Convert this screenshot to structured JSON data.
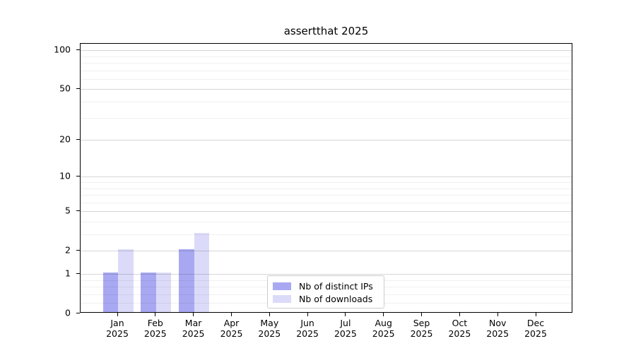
{
  "page": {
    "background": "#ffffff"
  },
  "chart_data": {
    "type": "bar",
    "title": "assertthat 2025",
    "categories": [
      "Jan",
      "Feb",
      "Mar",
      "Apr",
      "May",
      "Jun",
      "Jul",
      "Aug",
      "Sep",
      "Oct",
      "Nov",
      "Dec"
    ],
    "category_year": "2025",
    "series": [
      {
        "name": "Nb of distinct IPs",
        "color": "#a8a8f2",
        "values": [
          1,
          1,
          2,
          0,
          0,
          0,
          0,
          0,
          0,
          0,
          0,
          0
        ]
      },
      {
        "name": "Nb of downloads",
        "color": "#dbdbf9",
        "values": [
          2,
          1,
          3,
          0,
          0,
          0,
          0,
          0,
          0,
          0,
          0,
          0
        ]
      }
    ],
    "y_axis": {
      "scale": "log1p",
      "tick_values": [
        0,
        1,
        2,
        5,
        10,
        20,
        50,
        100
      ],
      "tick_labels": [
        "0",
        "1",
        "2",
        "5",
        "10",
        "20",
        "50",
        "100"
      ],
      "minor_gridline_values": [
        0.2,
        0.4,
        0.6,
        0.8,
        3,
        4,
        6,
        7,
        8,
        9,
        30,
        40,
        60,
        70,
        80,
        90
      ],
      "max": 112
    },
    "grid": {
      "major_color": "#d6d6d6",
      "minor_color": "#f0f0f0",
      "on": true
    },
    "legend": {
      "position": "lower center",
      "entries": [
        "Nb of distinct IPs",
        "Nb of downloads"
      ]
    },
    "xlabel": "",
    "ylabel": ""
  }
}
